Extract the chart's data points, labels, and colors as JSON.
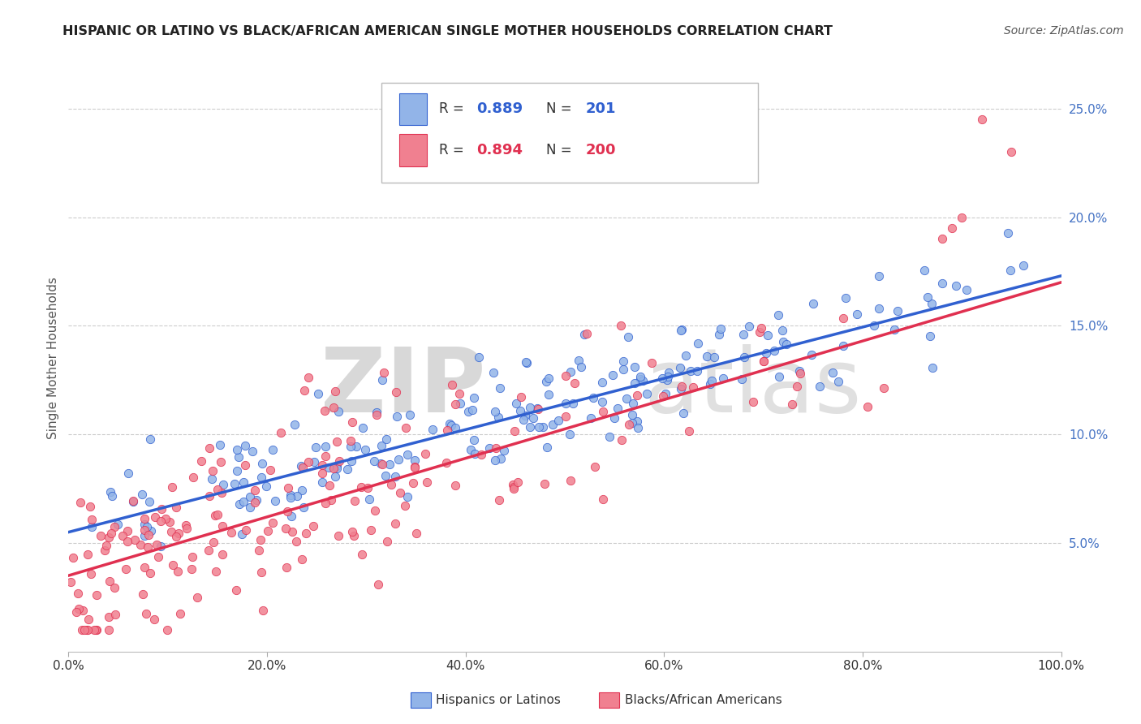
{
  "title": "HISPANIC OR LATINO VS BLACK/AFRICAN AMERICAN SINGLE MOTHER HOUSEHOLDS CORRELATION CHART",
  "source": "Source: ZipAtlas.com",
  "ylabel": "Single Mother Households",
  "blue_label": "Hispanics or Latinos",
  "pink_label": "Blacks/African Americans",
  "blue_R": 0.889,
  "blue_N": 201,
  "pink_R": 0.894,
  "pink_N": 200,
  "blue_color": "#92b4e8",
  "pink_color": "#f08090",
  "blue_line_color": "#3060d0",
  "pink_line_color": "#e03050",
  "watermark_zip": "ZIP",
  "watermark_atlas": "atlas",
  "xmin": 0.0,
  "xmax": 1.0,
  "ymin": 0.0,
  "ymax": 0.27,
  "yticks": [
    0.05,
    0.1,
    0.15,
    0.2,
    0.25
  ],
  "ytick_labels": [
    "5.0%",
    "10.0%",
    "15.0%",
    "20.0%",
    "25.0%"
  ],
  "xticks": [
    0.0,
    0.2,
    0.4,
    0.6,
    0.8,
    1.0
  ],
  "xtick_labels": [
    "0.0%",
    "20.0%",
    "40.0%",
    "60.0%",
    "80.0%",
    "100.0%"
  ],
  "blue_slope": 0.118,
  "blue_intercept": 0.055,
  "pink_slope": 0.135,
  "pink_intercept": 0.035,
  "seed": 42
}
